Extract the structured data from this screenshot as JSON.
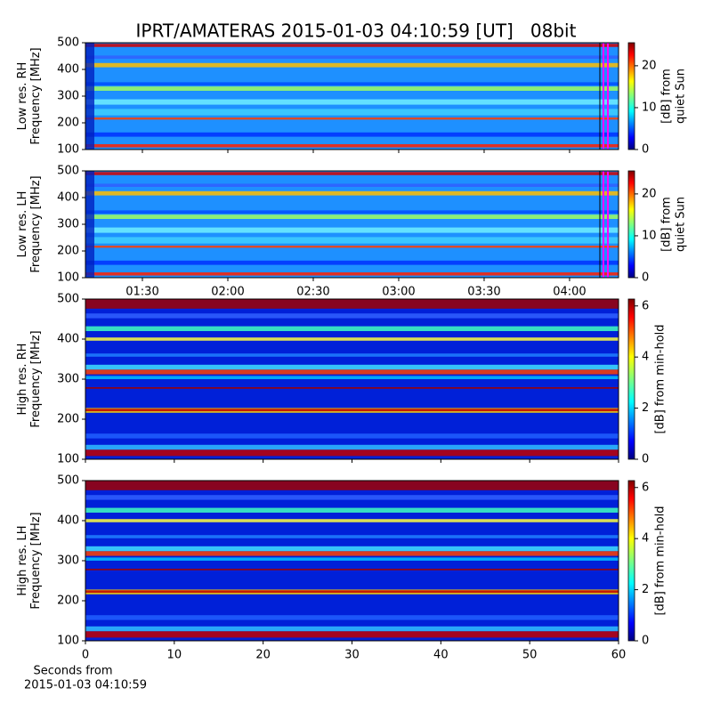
{
  "chart_data": [
    {
      "type": "heatmap",
      "title": "IPRT/AMATERAS 2015-01-03 04:10:59 [UT]   08bit",
      "ylabel": [
        "Low res. RH",
        "Frequency [MHz]"
      ],
      "xlim": [
        70,
        257.2
      ],
      "xticks": [
        90,
        120,
        150,
        180,
        210,
        240
      ],
      "xtick_labels": false,
      "ylim": [
        100,
        500
      ],
      "yticks": [
        100,
        200,
        300,
        400,
        500
      ],
      "colormap": "jet",
      "colorbar": {
        "label": [
          "[dB] from",
          "quiet Sun"
        ],
        "lim": [
          0,
          25.5
        ],
        "ticks": [
          0,
          10,
          20
        ]
      }
    },
    {
      "type": "heatmap",
      "ylabel": [
        "Low res. LH",
        "Frequency [MHz]"
      ],
      "xlim": [
        70,
        257.2
      ],
      "xticks": [
        {
          "value": 90,
          "label": "01:30"
        },
        {
          "value": 120,
          "label": "02:00"
        },
        {
          "value": 150,
          "label": "02:30"
        },
        {
          "value": 180,
          "label": "03:00"
        },
        {
          "value": 210,
          "label": "03:30"
        },
        {
          "value": 240,
          "label": "04:00"
        }
      ],
      "xtick_labels": true,
      "ylim": [
        100,
        500
      ],
      "yticks": [
        100,
        200,
        300,
        400,
        500
      ],
      "colormap": "jet",
      "colorbar": {
        "label": [
          "[dB] from",
          "quiet Sun"
        ],
        "lim": [
          0,
          25.5
        ],
        "ticks": [
          0,
          10,
          20
        ]
      }
    },
    {
      "type": "heatmap",
      "ylabel": [
        "High res. RH",
        "Frequency [MHz]"
      ],
      "xlim": [
        0,
        60
      ],
      "xticks": [
        0,
        10,
        20,
        30,
        40,
        50,
        60
      ],
      "xtick_labels": false,
      "ylim": [
        100,
        500
      ],
      "yticks": [
        100,
        200,
        300,
        400,
        500
      ],
      "colormap": "jet",
      "colorbar": {
        "label": [
          "[dB] from min-hold"
        ],
        "lim": [
          0,
          6.27
        ],
        "ticks": [
          0,
          2,
          4,
          6
        ]
      }
    },
    {
      "type": "heatmap",
      "ylabel": [
        "High res. LH",
        "Frequency [MHz]"
      ],
      "xlim": [
        0,
        60
      ],
      "xticks": [
        0,
        10,
        20,
        30,
        40,
        50,
        60
      ],
      "xtick_labels": true,
      "xlabel": [
        "Seconds from",
        "2015-01-03 04:10:59"
      ],
      "ylim": [
        100,
        500
      ],
      "yticks": [
        100,
        200,
        300,
        400,
        500
      ],
      "colormap": "jet",
      "colorbar": {
        "label": [
          "[dB] from min-hold"
        ],
        "lim": [
          0,
          6.27
        ],
        "ticks": [
          0,
          2,
          4,
          6
        ]
      }
    }
  ]
}
